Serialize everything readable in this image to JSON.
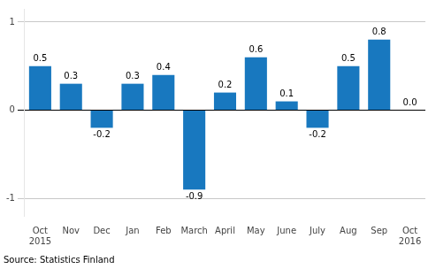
{
  "chart_data": {
    "type": "bar",
    "categories": [
      "Oct\n2015",
      "Nov",
      "Dec",
      "Jan",
      "Feb",
      "March",
      "April",
      "May",
      "June",
      "July",
      "Aug",
      "Sep",
      "Oct\n2016"
    ],
    "values": [
      0.5,
      0.3,
      -0.2,
      0.3,
      0.4,
      -0.9,
      0.2,
      0.6,
      0.1,
      -0.2,
      0.5,
      0.8,
      0.0
    ],
    "value_labels": [
      "0.5",
      "0.3",
      "-0.2",
      "0.3",
      "0.4",
      "-0.9",
      "0.2",
      "0.6",
      "0.1",
      "-0.2",
      "0.5",
      "0.8",
      "0.0"
    ],
    "color": "#1878bf",
    "ylim": [
      -1.2,
      1.15
    ],
    "yticks": [
      -1,
      0,
      1
    ],
    "grid": true,
    "data_labels": true,
    "annotations": [
      "Source: Statistics Finland"
    ]
  }
}
